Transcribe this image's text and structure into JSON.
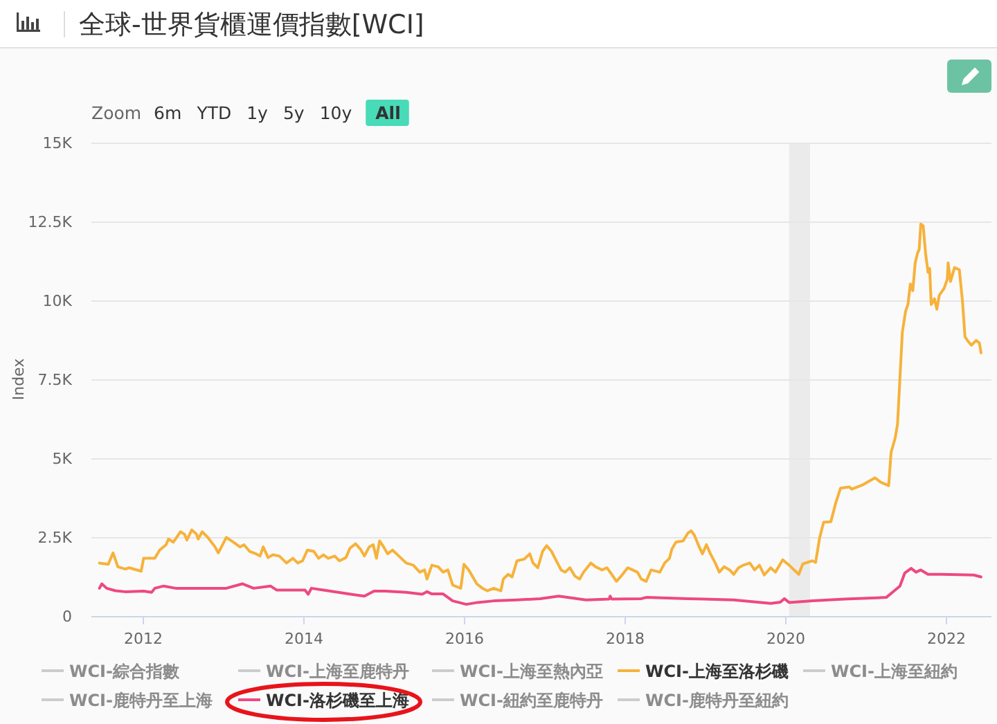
{
  "chart_data": {
    "type": "line",
    "title": "全球-世界貨櫃運價指數[WCI]",
    "ylabel": "Index",
    "annotations": [
      "Zoom",
      "6m",
      "YTD",
      "1y",
      "5y",
      "10y",
      "All"
    ],
    "xlim": [
      2011.36,
      2022.57
    ],
    "xticks": [
      2012,
      2014,
      2016,
      2018,
      2020,
      2022
    ],
    "ylim": [
      0,
      15000
    ],
    "yticks": [
      0,
      {
        "value": 2500,
        "label": "2.5K"
      },
      {
        "value": 5000,
        "label": "5K"
      },
      {
        "value": 7500,
        "label": "7.5K"
      },
      {
        "value": 10000,
        "label": "10K"
      },
      {
        "value": 12500,
        "label": "12.5K"
      },
      {
        "value": 15000,
        "label": "15K"
      }
    ],
    "grid": "y",
    "legend": "bottom",
    "bands": [
      {
        "axis": "x",
        "from": 2020.05,
        "to": 2020.31,
        "color": "#ebebeb"
      }
    ],
    "series": [
      {
        "name": "WCI-綜合指數",
        "color": "#cccccc"
      },
      {
        "name": "WCI-上海至鹿特丹",
        "color": "#cccccc"
      },
      {
        "name": "WCI-上海至熱內亞",
        "color": "#cccccc"
      },
      {
        "name": "WCI-上海至洛杉磯",
        "color": "#f6b23a",
        "x": [
          2011.46,
          2011.57,
          2011.63,
          2011.69,
          2011.78,
          2011.83,
          2011.98,
          2012.01,
          2012.15,
          2012.21,
          2012.29,
          2012.32,
          2012.38,
          2012.47,
          2012.52,
          2012.55,
          2012.61,
          2012.67,
          2012.69,
          2012.74,
          2012.81,
          2012.9,
          2012.94,
          2012.98,
          2013.04,
          2013.13,
          2013.21,
          2013.26,
          2013.33,
          2013.41,
          2013.46,
          2013.5,
          2013.56,
          2013.62,
          2013.7,
          2013.79,
          2013.87,
          2013.93,
          2013.99,
          2014.05,
          2014.13,
          2014.19,
          2014.25,
          2014.31,
          2014.39,
          2014.45,
          2014.53,
          2014.58,
          2014.65,
          2014.71,
          2014.76,
          2014.82,
          2014.87,
          2014.91,
          2014.95,
          2015.0,
          2015.05,
          2015.11,
          2015.19,
          2015.28,
          2015.37,
          2015.45,
          2015.51,
          2015.54,
          2015.6,
          2015.68,
          2015.74,
          2015.8,
          2015.86,
          2015.96,
          2016.0,
          2016.06,
          2016.16,
          2016.23,
          2016.29,
          2016.37,
          2016.46,
          2016.49,
          2016.55,
          2016.6,
          2016.66,
          2016.75,
          2016.82,
          2016.86,
          2016.92,
          2016.98,
          2017.03,
          2017.09,
          2017.15,
          2017.21,
          2017.26,
          2017.32,
          2017.38,
          2017.44,
          2017.49,
          2017.58,
          2017.64,
          2017.72,
          2017.78,
          2017.84,
          2017.9,
          2017.95,
          2018.04,
          2018.1,
          2018.16,
          2018.21,
          2018.27,
          2018.33,
          2018.44,
          2018.5,
          2018.56,
          2018.59,
          2018.64,
          2018.73,
          2018.79,
          2018.83,
          2018.87,
          2018.93,
          2018.97,
          2019.02,
          2019.07,
          2019.13,
          2019.18,
          2019.24,
          2019.31,
          2019.36,
          2019.42,
          2019.48,
          2019.56,
          2019.62,
          2019.68,
          2019.74,
          2019.82,
          2019.88,
          2019.97,
          2020.05,
          2020.17,
          2020.22,
          2020.34,
          2020.38,
          2020.43,
          2020.48,
          2020.57,
          2020.63,
          2020.69,
          2020.8,
          2020.83,
          2020.97,
          2021.12,
          2021.19,
          2021.29,
          2021.32,
          2021.37,
          2021.4,
          2021.43,
          2021.46,
          2021.5,
          2021.53,
          2021.56,
          2021.59,
          2021.62,
          2021.65,
          2021.67,
          2021.69,
          2021.72,
          2021.75,
          2021.78,
          2021.8,
          2021.82,
          2021.86,
          2021.89,
          2021.92,
          2021.98,
          2022.02,
          2022.03,
          2022.06,
          2022.11,
          2022.17,
          2022.21,
          2022.24,
          2022.28,
          2022.32,
          2022.38,
          2022.42,
          2022.44
        ],
        "values": [
          1680,
          1640,
          2000,
          1560,
          1490,
          1530,
          1420,
          1830,
          1830,
          2090,
          2260,
          2440,
          2340,
          2670,
          2590,
          2410,
          2730,
          2590,
          2440,
          2670,
          2490,
          2190,
          2000,
          2190,
          2490,
          2340,
          2190,
          2260,
          2050,
          1970,
          1900,
          2190,
          1850,
          1940,
          1900,
          1680,
          1830,
          1680,
          1750,
          2090,
          2050,
          1830,
          1940,
          1830,
          1900,
          1750,
          1850,
          2150,
          2290,
          2120,
          1900,
          2190,
          2260,
          1830,
          2380,
          2190,
          1970,
          2090,
          1900,
          1680,
          1610,
          1390,
          1460,
          1170,
          1610,
          1560,
          1390,
          1460,
          980,
          880,
          1640,
          1460,
          1020,
          880,
          800,
          880,
          800,
          1170,
          1320,
          1240,
          1750,
          1800,
          1970,
          1680,
          1530,
          2050,
          2230,
          2050,
          1750,
          1460,
          1390,
          1530,
          1270,
          1170,
          1390,
          1680,
          1560,
          1460,
          1530,
          1320,
          1100,
          1240,
          1530,
          1460,
          1390,
          1170,
          1100,
          1460,
          1390,
          1680,
          1830,
          2120,
          2340,
          2380,
          2630,
          2700,
          2560,
          2190,
          1970,
          2260,
          1970,
          1680,
          1390,
          1560,
          1460,
          1320,
          1530,
          1610,
          1680,
          1460,
          1610,
          1300,
          1530,
          1390,
          1780,
          1610,
          1320,
          1650,
          1750,
          1700,
          2480,
          2970,
          2990,
          3580,
          4050,
          4090,
          4020,
          4160,
          4380,
          4240,
          4130,
          5190,
          5630,
          6070,
          7530,
          8990,
          9650,
          9870,
          10520,
          10310,
          11190,
          11500,
          11620,
          12420,
          12360,
          11480,
          10890,
          11010,
          9870,
          10050,
          9720,
          10160,
          10380,
          10670,
          11190,
          10600,
          11040,
          10970,
          9940,
          8850,
          8700,
          8580,
          8730,
          8650,
          8340
        ]
      },
      {
        "name": "WCI-上海至紐約",
        "color": "#cccccc"
      },
      {
        "name": "WCI-鹿特丹至上海",
        "color": "#cccccc"
      },
      {
        "name": "WCI-洛杉磯至上海",
        "color": "#ee4882",
        "x": [
          2011.46,
          2011.49,
          2011.55,
          2011.66,
          2011.78,
          2012.01,
          2012.11,
          2012.15,
          2012.26,
          2012.41,
          2012.69,
          2013.04,
          2013.24,
          2013.38,
          2013.59,
          2013.67,
          2014.02,
          2014.06,
          2014.1,
          2014.25,
          2014.59,
          2014.76,
          2014.88,
          2015.02,
          2015.28,
          2015.48,
          2015.54,
          2015.6,
          2015.74,
          2015.86,
          2016.03,
          2016.17,
          2016.37,
          2016.66,
          2016.95,
          2017.18,
          2017.52,
          2017.81,
          2017.82,
          2017.84,
          2018.21,
          2018.27,
          2018.79,
          2019.36,
          2019.82,
          2019.94,
          2019.99,
          2020.05,
          2020.34,
          2020.74,
          2021.26,
          2021.36,
          2021.43,
          2021.49,
          2021.57,
          2021.63,
          2021.69,
          2021.78,
          2021.95,
          2022.35,
          2022.44
        ],
        "values": [
          880,
          1020,
          880,
          800,
          770,
          790,
          750,
          880,
          950,
          880,
          880,
          880,
          1020,
          880,
          950,
          820,
          820,
          690,
          880,
          820,
          690,
          630,
          790,
          790,
          750,
          690,
          770,
          700,
          700,
          480,
          370,
          430,
          480,
          510,
          550,
          630,
          510,
          540,
          630,
          540,
          550,
          590,
          550,
          510,
          400,
          440,
          550,
          430,
          480,
          540,
          590,
          800,
          950,
          1360,
          1510,
          1390,
          1460,
          1320,
          1320,
          1300,
          1240
        ]
      },
      {
        "name": "WCI-紐約至鹿特丹",
        "color": "#cccccc"
      },
      {
        "name": "WCI-鹿特丹至紐約",
        "color": "#cccccc"
      }
    ]
  }
}
